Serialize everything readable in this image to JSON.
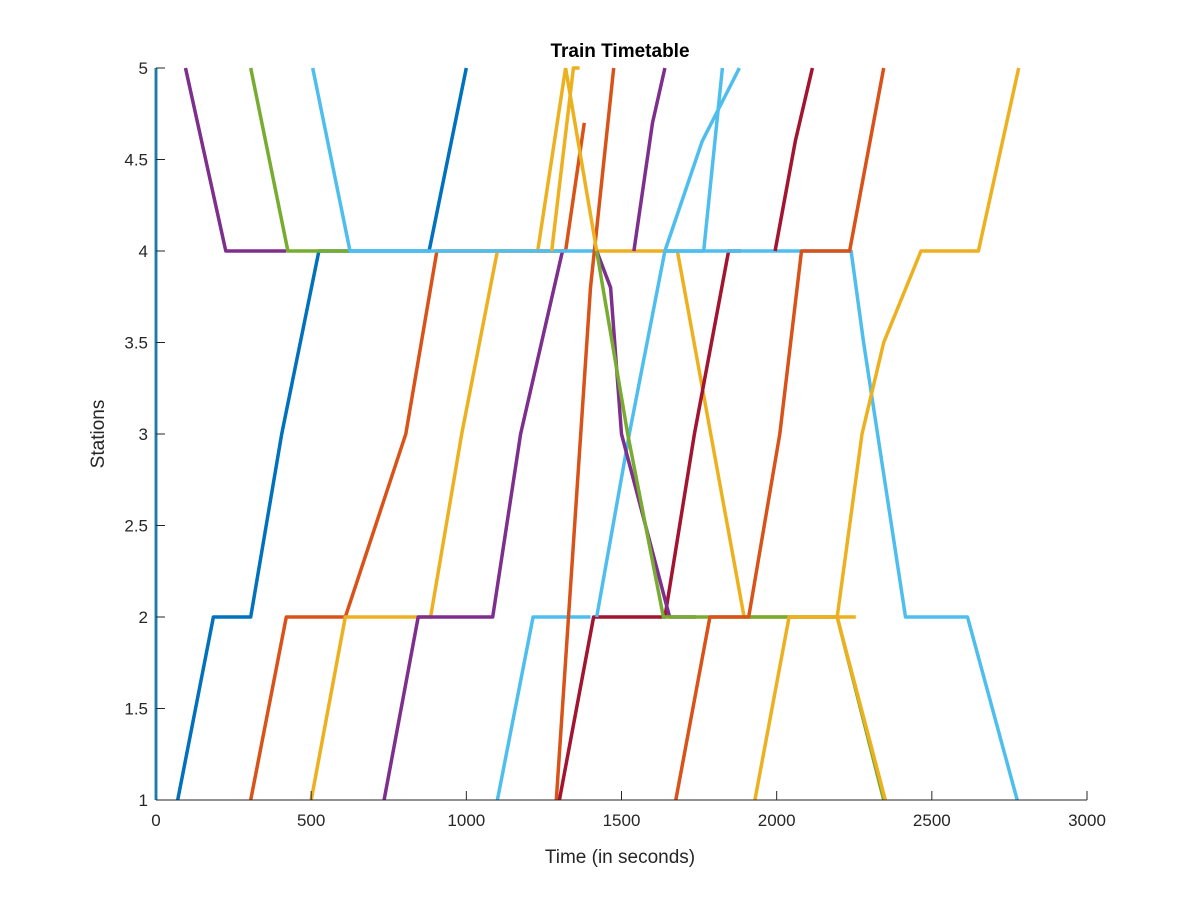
{
  "chart_data": {
    "type": "line",
    "title": "Train Timetable",
    "xlabel": "Time (in seconds)",
    "ylabel": "Stations",
    "xlim": [
      0,
      3000
    ],
    "ylim": [
      1,
      5
    ],
    "xticks": [
      0,
      500,
      1000,
      1500,
      2000,
      2500,
      3000
    ],
    "yticks": [
      1,
      1.5,
      2,
      2.5,
      3,
      3.5,
      4,
      4.5,
      5
    ],
    "xtick_labels": [
      "0",
      "500",
      "1000",
      "1500",
      "2000",
      "2500",
      "3000"
    ],
    "ytick_labels": [
      "1",
      "1.5",
      "2",
      "2.5",
      "3",
      "3.5",
      "4",
      "4.5",
      "5"
    ],
    "grid": false,
    "series": [
      {
        "color": "#0072BD",
        "x": [
          70,
          185,
          305,
          405,
          525,
          625,
          880,
          1000
        ],
        "y": [
          1,
          2,
          2,
          3,
          4,
          4,
          4,
          5
        ]
      },
      {
        "color": "#D95319",
        "x": [
          305,
          420,
          610,
          805,
          905,
          1020
        ],
        "y": [
          1,
          2,
          2,
          3,
          4,
          4
        ]
      },
      {
        "color": "#D95319",
        "x": [
          1020,
          1320,
          1380,
          1380
        ],
        "y": [
          4,
          4,
          4.7,
          4.7
        ]
      },
      {
        "color": "#EDB120",
        "x": [
          500,
          610,
          615,
          825,
          885,
          985,
          1100,
          1230,
          1320
        ],
        "y": [
          1,
          2,
          2,
          2,
          2,
          3,
          4,
          4,
          5
        ]
      },
      {
        "color": "#7E2F8E",
        "x": [
          95,
          225,
          420
        ],
        "y": [
          5,
          4,
          4
        ]
      },
      {
        "color": "#7E2F8E",
        "x": [
          735,
          845,
          1085,
          1175,
          1310
        ],
        "y": [
          1,
          2,
          2,
          3,
          4
        ]
      },
      {
        "color": "#77AC30",
        "x": [
          305,
          425,
          620
        ],
        "y": [
          5,
          4,
          4
        ]
      },
      {
        "color": "#4DBEEE",
        "x": [
          505,
          625,
          1420
        ],
        "y": [
          5,
          4,
          4
        ]
      },
      {
        "color": "#4DBEEE",
        "x": [
          1100,
          1215,
          1400
        ],
        "y": [
          1,
          2,
          2
        ]
      },
      {
        "color": "#D95319",
        "x": [
          1290,
          1400,
          1475
        ],
        "y": [
          1,
          3.8,
          5
        ]
      },
      {
        "color": "#EDB120",
        "x": [
          1275,
          1345,
          1365
        ],
        "y": [
          4,
          5,
          5
        ]
      },
      {
        "color": "#EDB120",
        "x": [
          1320,
          1420,
          1680,
          1895,
          2255
        ],
        "y": [
          5,
          4,
          4,
          2,
          2
        ]
      },
      {
        "color": "#A2142F",
        "x": [
          1300,
          1410,
          1640,
          1735,
          1845,
          1885
        ],
        "y": [
          1,
          2,
          2,
          3,
          4,
          4
        ]
      },
      {
        "color": "#4DBEEE",
        "x": [
          1420,
          1525,
          1640,
          1765,
          1825
        ],
        "y": [
          2,
          3,
          4,
          4,
          5
        ]
      },
      {
        "color": "#7E2F8E",
        "x": [
          1420,
          1465,
          1500,
          1655,
          1680,
          1740
        ],
        "y": [
          4,
          3.8,
          3,
          2,
          2,
          2
        ]
      },
      {
        "color": "#77AC30",
        "x": [
          1420,
          1520,
          1635,
          1895,
          2195,
          2345
        ],
        "y": [
          4,
          3,
          2,
          2,
          2,
          1
        ]
      },
      {
        "color": "#7E2F8E",
        "x": [
          1540,
          1600,
          1640
        ],
        "y": [
          4,
          4.7,
          5
        ]
      },
      {
        "color": "#4DBEEE",
        "x": [
          1640,
          1760,
          1880
        ],
        "y": [
          4,
          4.6,
          5
        ]
      },
      {
        "color": "#4DBEEE",
        "x": [
          1640,
          2240,
          2280,
          2415,
          2500,
          2615,
          2775
        ],
        "y": [
          4,
          4,
          3.5,
          2,
          2,
          2,
          1
        ]
      },
      {
        "color": "#A2142F",
        "x": [
          1995,
          2060,
          2115
        ],
        "y": [
          4,
          4.6,
          5
        ]
      },
      {
        "color": "#D95319",
        "x": [
          1675,
          1785,
          1895,
          1910,
          2010,
          2080,
          2185,
          2235,
          2345
        ],
        "y": [
          1,
          2,
          2,
          2,
          3,
          4,
          4,
          4,
          5
        ]
      },
      {
        "color": "#EDB120",
        "x": [
          1930,
          2040,
          2195,
          2350
        ],
        "y": [
          1,
          2,
          2,
          1
        ]
      },
      {
        "color": "#EDB120",
        "x": [
          2195,
          2275,
          2345,
          2465,
          2650,
          2780
        ],
        "y": [
          2,
          3,
          3.5,
          4,
          4,
          5
        ]
      },
      {
        "color": "#4DBEEE",
        "x": [
          0,
          0
        ],
        "y": [
          1,
          5
        ]
      }
    ]
  }
}
